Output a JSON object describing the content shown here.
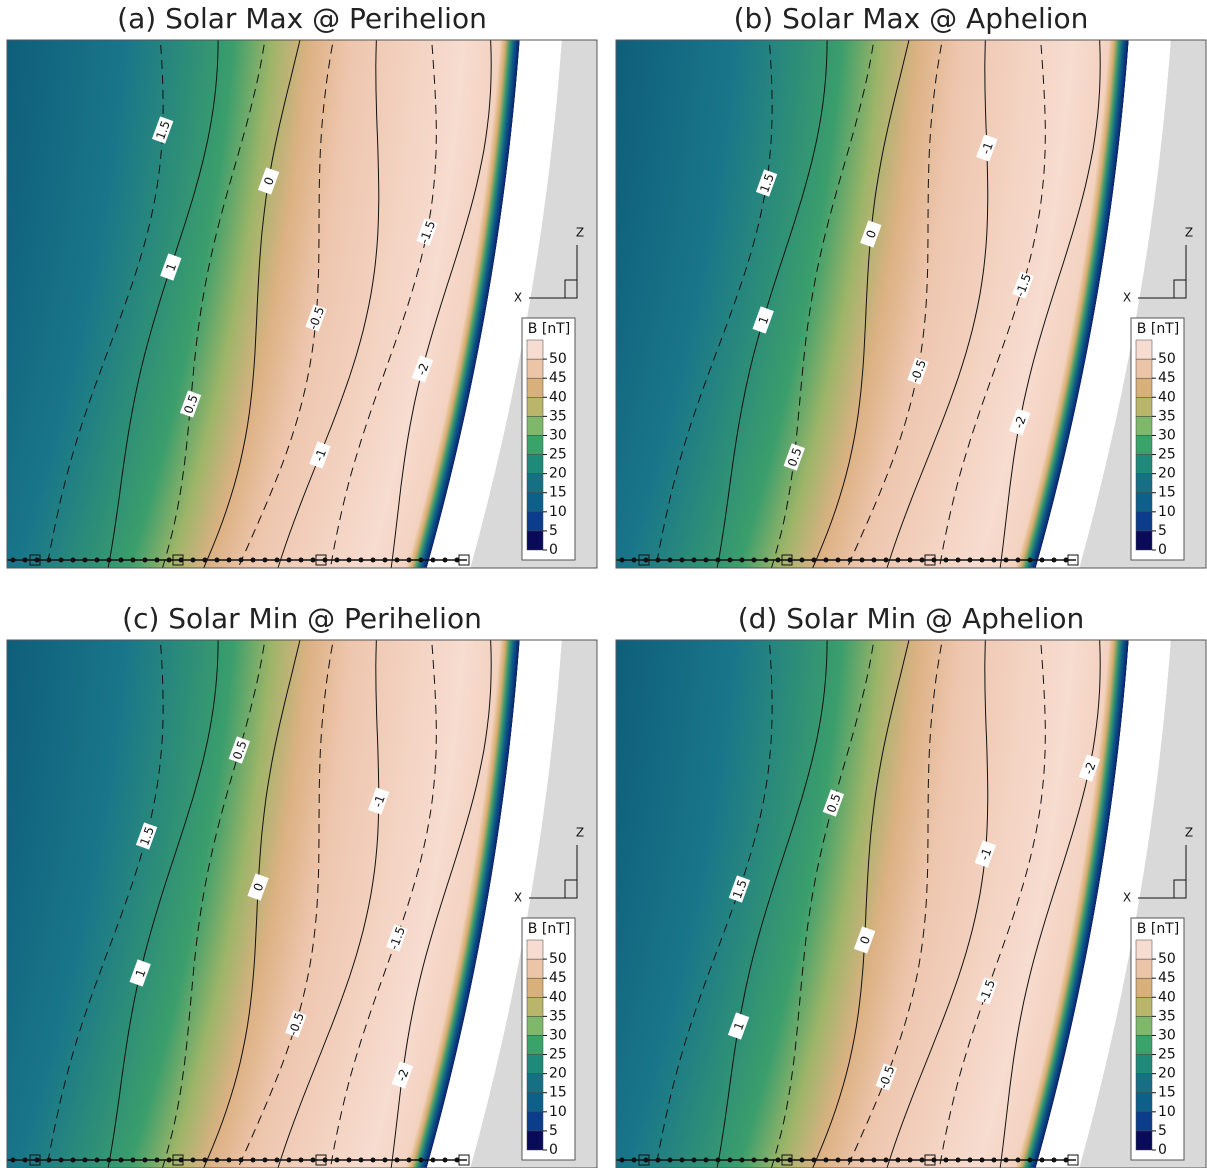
{
  "chart_data": {
    "type": "contour",
    "panels": [
      {
        "title": "(a) Solar Max @ Perihelion",
        "contour_levels": [
          1.5,
          1,
          0.5,
          0,
          -0.5,
          -1,
          -1.5,
          -2
        ]
      },
      {
        "title": "(b) Solar Max @ Aphelion",
        "contour_levels": [
          1.5,
          1,
          0.5,
          0,
          -0.5,
          -1,
          -1.5,
          -2
        ]
      },
      {
        "title": "(c) Solar Min @ Perihelion",
        "contour_levels": [
          1.5,
          1,
          0.5,
          0,
          -0.5,
          -1,
          -1.5,
          -2
        ]
      },
      {
        "title": "(d) Solar Min @ Aphelion",
        "contour_levels": [
          1.5,
          1,
          0.5,
          0,
          -0.5,
          -1,
          -1.5,
          -2
        ]
      }
    ],
    "colorbar": {
      "label": "B [nT]",
      "lim": [
        0,
        55
      ],
      "ticks": [
        0,
        5,
        10,
        15,
        20,
        25,
        30,
        35,
        40,
        45,
        50
      ],
      "colors": [
        "#0a0a5a",
        "#0c3d8a",
        "#0e5f8a",
        "#176f86",
        "#1f8a7a",
        "#3aa36a",
        "#7fb86a",
        "#b9b56a",
        "#d8b07a",
        "#ecc4a8",
        "#f7dcd2"
      ]
    },
    "axes": {
      "z_label": "Z",
      "x_label": "X"
    }
  }
}
